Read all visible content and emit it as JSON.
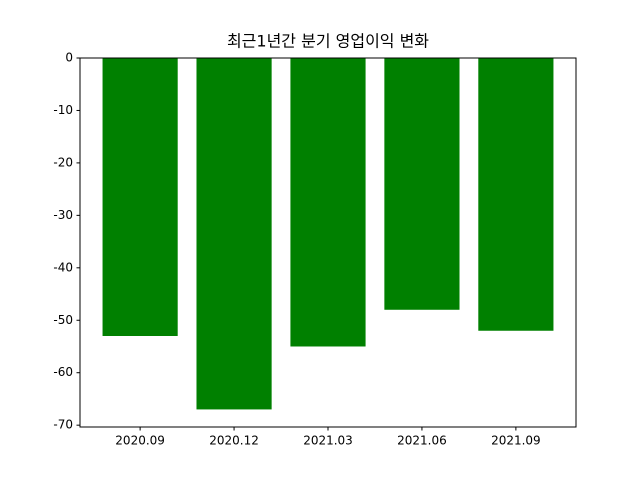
{
  "chart_data": {
    "type": "bar",
    "title": "최근1년간 분기 영업이익 변화",
    "categories": [
      "2020.09",
      "2020.12",
      "2021.03",
      "2021.06",
      "2021.09"
    ],
    "values": [
      -53,
      -67,
      -55,
      -48,
      -52
    ],
    "color": "#008000",
    "ylim": [
      -70.35,
      0
    ],
    "yticks": [
      0,
      -10,
      -20,
      -30,
      -40,
      -50,
      -60,
      -70
    ],
    "grid": false
  }
}
